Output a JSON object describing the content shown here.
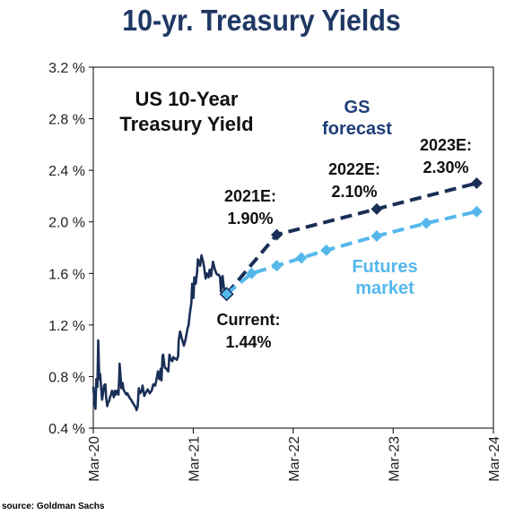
{
  "title": "10-yr. Treasury Yields",
  "source": "source: Goldman Sachs",
  "chart_data": {
    "type": "line",
    "inner_title": [
      "US 10-Year",
      "Treasury Yield"
    ],
    "ylim": [
      0.4,
      3.2
    ],
    "y_ticks": [
      0.4,
      0.8,
      1.2,
      1.6,
      2.0,
      2.4,
      2.8,
      3.2
    ],
    "y_tick_labels": [
      "0.4 %",
      "0.8 %",
      "1.2 %",
      "1.6 %",
      "2.0 %",
      "2.4 %",
      "2.8 %",
      "3.2 %"
    ],
    "x_ticks": [
      "2020-03",
      "2021-03",
      "2022-03",
      "2023-03",
      "2024-03"
    ],
    "x_tick_labels": [
      "Mar-20",
      "Mar-21",
      "Mar-22",
      "Mar-23",
      "Mar-24"
    ],
    "grid": false,
    "series": [
      {
        "key": "history",
        "style": "solid",
        "color": "#1a2f57",
        "points": [
          [
            "2020-03-01",
            0.72
          ],
          [
            "2020-03-05",
            0.62
          ],
          [
            "2020-03-09",
            0.55
          ],
          [
            "2020-03-12",
            0.78
          ],
          [
            "2020-03-16",
            0.72
          ],
          [
            "2020-03-19",
            1.08
          ],
          [
            "2020-03-23",
            0.78
          ],
          [
            "2020-03-26",
            0.82
          ],
          [
            "2020-03-30",
            0.7
          ],
          [
            "2020-04-02",
            0.62
          ],
          [
            "2020-04-06",
            0.68
          ],
          [
            "2020-04-09",
            0.73
          ],
          [
            "2020-04-14",
            0.74
          ],
          [
            "2020-04-17",
            0.64
          ],
          [
            "2020-04-21",
            0.57
          ],
          [
            "2020-04-24",
            0.6
          ],
          [
            "2020-04-28",
            0.61
          ],
          [
            "2020-05-01",
            0.64
          ],
          [
            "2020-05-05",
            0.66
          ],
          [
            "2020-05-08",
            0.69
          ],
          [
            "2020-05-12",
            0.67
          ],
          [
            "2020-05-15",
            0.64
          ],
          [
            "2020-05-19",
            0.69
          ],
          [
            "2020-05-22",
            0.66
          ],
          [
            "2020-05-27",
            0.69
          ],
          [
            "2020-06-01",
            0.66
          ],
          [
            "2020-06-04",
            0.82
          ],
          [
            "2020-06-05",
            0.9
          ],
          [
            "2020-06-09",
            0.79
          ],
          [
            "2020-06-12",
            0.71
          ],
          [
            "2020-06-16",
            0.75
          ],
          [
            "2020-06-19",
            0.7
          ],
          [
            "2020-06-24",
            0.68
          ],
          [
            "2020-06-30",
            0.66
          ],
          [
            "2020-07-03",
            0.67
          ],
          [
            "2020-07-08",
            0.65
          ],
          [
            "2020-07-13",
            0.63
          ],
          [
            "2020-07-17",
            0.62
          ],
          [
            "2020-07-22",
            0.6
          ],
          [
            "2020-07-28",
            0.58
          ],
          [
            "2020-08-03",
            0.56
          ],
          [
            "2020-08-06",
            0.54
          ],
          [
            "2020-08-10",
            0.57
          ],
          [
            "2020-08-14",
            0.71
          ],
          [
            "2020-08-19",
            0.67
          ],
          [
            "2020-08-25",
            0.69
          ],
          [
            "2020-08-28",
            0.73
          ],
          [
            "2020-09-03",
            0.65
          ],
          [
            "2020-09-10",
            0.68
          ],
          [
            "2020-09-16",
            0.7
          ],
          [
            "2020-09-23",
            0.67
          ],
          [
            "2020-09-30",
            0.69
          ],
          [
            "2020-10-06",
            0.74
          ],
          [
            "2020-10-13",
            0.73
          ],
          [
            "2020-10-20",
            0.8
          ],
          [
            "2020-10-23",
            0.84
          ],
          [
            "2020-10-28",
            0.78
          ],
          [
            "2020-11-02",
            0.86
          ],
          [
            "2020-11-05",
            0.77
          ],
          [
            "2020-11-09",
            0.96
          ],
          [
            "2020-11-11",
            0.97
          ],
          [
            "2020-11-17",
            0.87
          ],
          [
            "2020-11-23",
            0.86
          ],
          [
            "2020-11-30",
            0.84
          ],
          [
            "2020-12-04",
            0.97
          ],
          [
            "2020-12-09",
            0.93
          ],
          [
            "2020-12-15",
            0.92
          ],
          [
            "2020-12-18",
            0.95
          ],
          [
            "2020-12-24",
            0.94
          ],
          [
            "2020-12-31",
            0.93
          ],
          [
            "2021-01-05",
            0.96
          ],
          [
            "2021-01-07",
            1.08
          ],
          [
            "2021-01-12",
            1.15
          ],
          [
            "2021-01-19",
            1.09
          ],
          [
            "2021-01-26",
            1.04
          ],
          [
            "2021-02-01",
            1.09
          ],
          [
            "2021-02-08",
            1.17
          ],
          [
            "2021-02-12",
            1.2
          ],
          [
            "2021-02-17",
            1.3
          ],
          [
            "2021-02-22",
            1.37
          ],
          [
            "2021-02-25",
            1.52
          ],
          [
            "2021-03-02",
            1.41
          ],
          [
            "2021-03-05",
            1.57
          ],
          [
            "2021-03-10",
            1.52
          ],
          [
            "2021-03-15",
            1.61
          ],
          [
            "2021-03-18",
            1.71
          ],
          [
            "2021-03-22",
            1.69
          ],
          [
            "2021-03-26",
            1.66
          ],
          [
            "2021-03-31",
            1.74
          ],
          [
            "2021-04-05",
            1.7
          ],
          [
            "2021-04-09",
            1.66
          ],
          [
            "2021-04-15",
            1.56
          ],
          [
            "2021-04-20",
            1.6
          ],
          [
            "2021-04-26",
            1.57
          ],
          [
            "2021-04-30",
            1.63
          ],
          [
            "2021-05-05",
            1.58
          ],
          [
            "2021-05-12",
            1.69
          ],
          [
            "2021-05-18",
            1.64
          ],
          [
            "2021-05-24",
            1.6
          ],
          [
            "2021-05-28",
            1.59
          ],
          [
            "2021-06-02",
            1.59
          ],
          [
            "2021-06-07",
            1.57
          ],
          [
            "2021-06-10",
            1.46
          ],
          [
            "2021-06-16",
            1.58
          ],
          [
            "2021-06-22",
            1.47
          ],
          [
            "2021-06-28",
            1.48
          ],
          [
            "2021-07-01",
            1.44
          ]
        ]
      },
      {
        "name": "GS forecast",
        "style": "dashed",
        "color": "#1a2f57",
        "marker": "diamond",
        "points": [
          [
            "2021-07-01",
            1.44
          ],
          [
            "2021-12-31",
            1.9
          ],
          [
            "2022-12-31",
            2.1
          ],
          [
            "2023-12-31",
            2.3
          ]
        ]
      },
      {
        "name": "Futures market",
        "style": "dashed",
        "color": "#55b8ec",
        "marker": "diamond",
        "points": [
          [
            "2021-07-01",
            1.44
          ],
          [
            "2021-09-30",
            1.6
          ],
          [
            "2021-12-31",
            1.66
          ],
          [
            "2022-03-31",
            1.72
          ],
          [
            "2022-06-30",
            1.78
          ],
          [
            "2022-12-31",
            1.89
          ],
          [
            "2023-06-30",
            1.99
          ],
          [
            "2023-12-31",
            2.08
          ]
        ]
      }
    ],
    "annotations": [
      {
        "key": "gs_label",
        "lines": [
          "GS",
          "forecast"
        ],
        "color": "#1f3d78"
      },
      {
        "key": "futures_label",
        "lines": [
          "Futures",
          "market"
        ],
        "color": "#55b8ec"
      },
      {
        "key": "current",
        "lines": [
          "Current:",
          "1.44%"
        ],
        "color": "#111111"
      },
      {
        "key": "e2021",
        "lines": [
          "2021E:",
          "1.90%"
        ],
        "color": "#111111"
      },
      {
        "key": "e2022",
        "lines": [
          "2022E:",
          "2.10%"
        ],
        "color": "#111111"
      },
      {
        "key": "e2023",
        "lines": [
          "2023E:",
          "2.30%"
        ],
        "color": "#111111"
      }
    ]
  }
}
